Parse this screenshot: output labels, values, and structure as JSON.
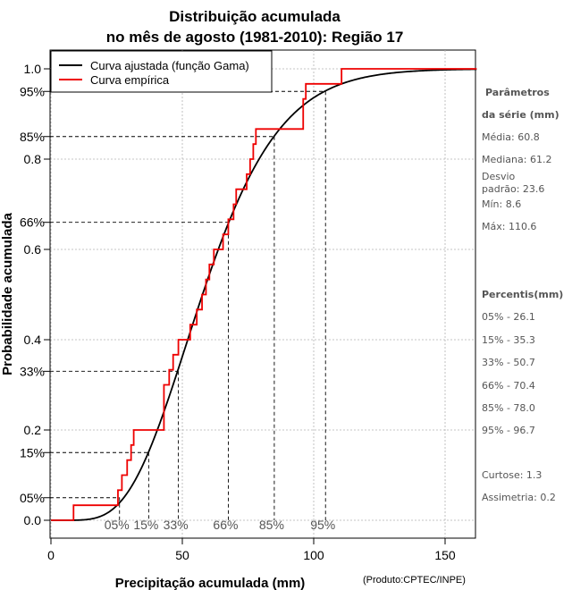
{
  "chart_data": {
    "type": "line",
    "title_line1": "Distribuição acumulada",
    "title_line2": "no mês de agosto (1981-2010): Região 17",
    "xlabel": "Precipitação acumulada (mm)",
    "ylabel": "Probabilidade acumulada",
    "credit": "(Produto:CPTEC/INPE)",
    "xlim": [
      0,
      162
    ],
    "ylim": [
      0,
      1
    ],
    "x_ticks": [
      0,
      50,
      100,
      150
    ],
    "y_ticks": [
      0.0,
      0.2,
      0.4,
      0.6,
      0.8,
      1.0
    ],
    "y_tick_labels": [
      "0.0",
      "0.2",
      "0.4",
      "0.6",
      "0.8",
      "1.0"
    ],
    "x_grid": [
      0,
      50,
      100,
      150
    ],
    "gamma_params": {
      "shape": 6.6,
      "scale": 9.2
    },
    "series": [
      {
        "name": "Curva ajustada (função Gama)",
        "color": "#000000",
        "kind": "gamma_cdf"
      },
      {
        "name": "Curva empírica",
        "color": "#ee0000",
        "kind": "step",
        "x": [
          0,
          8.6,
          25.5,
          27.0,
          29.0,
          30.5,
          31.5,
          43.0,
          45.0,
          46.5,
          48.5,
          53.0,
          55.5,
          57.5,
          59.0,
          60.3,
          62.0,
          65.5,
          67.5,
          69.5,
          70.5,
          74.5,
          75.8,
          77.0,
          78.0,
          96.0,
          97.0,
          110.6,
          162
        ],
        "y": [
          0,
          0.0333,
          0.0667,
          0.1,
          0.1333,
          0.1667,
          0.2,
          0.3,
          0.3333,
          0.3667,
          0.4,
          0.4333,
          0.4667,
          0.5,
          0.5333,
          0.5667,
          0.6,
          0.6333,
          0.6667,
          0.7,
          0.7333,
          0.7667,
          0.8,
          0.8333,
          0.8667,
          0.9333,
          0.9667,
          1.0,
          1.0
        ]
      }
    ],
    "percentiles": [
      {
        "label": "05%",
        "prob": 0.05,
        "value": 26.1
      },
      {
        "label": "15%",
        "prob": 0.15,
        "value": 35.3
      },
      {
        "label": "33%",
        "prob": 0.33,
        "value": 50.7
      },
      {
        "label": "66%",
        "prob": 0.66,
        "value": 70.4
      },
      {
        "label": "85%",
        "prob": 0.85,
        "value": 78.0
      },
      {
        "label": "95%",
        "prob": 0.95,
        "value": 96.7
      }
    ],
    "percentile_marks_x": [
      26.1,
      37.2,
      48.5,
      67.5,
      85.0,
      104.5
    ],
    "legend": [
      {
        "label": "Curva ajustada (função Gama)",
        "color": "#000000"
      },
      {
        "label": "Curva empírica",
        "color": "#ee0000"
      }
    ]
  },
  "side_panel": {
    "heading1": "Parâmetros",
    "heading2": "da série (mm)",
    "media": "Média: 60.8",
    "mediana": "Mediana: 61.2",
    "desvio1": "Desvio",
    "desvio2": "padrão: 23.6",
    "min": "Mín: 8.6",
    "max": "Máx: 110.6",
    "percentis_heading": "Percentis(mm)",
    "p05": "05% - 26.1",
    "p15": "15% - 35.3",
    "p33": "33% - 50.7",
    "p66": "66% - 70.4",
    "p85": "85% - 78.0",
    "p95": "95% - 96.7",
    "curtose": "Curtose: 1.3",
    "assimetria": "Assimetria: 0.2"
  }
}
